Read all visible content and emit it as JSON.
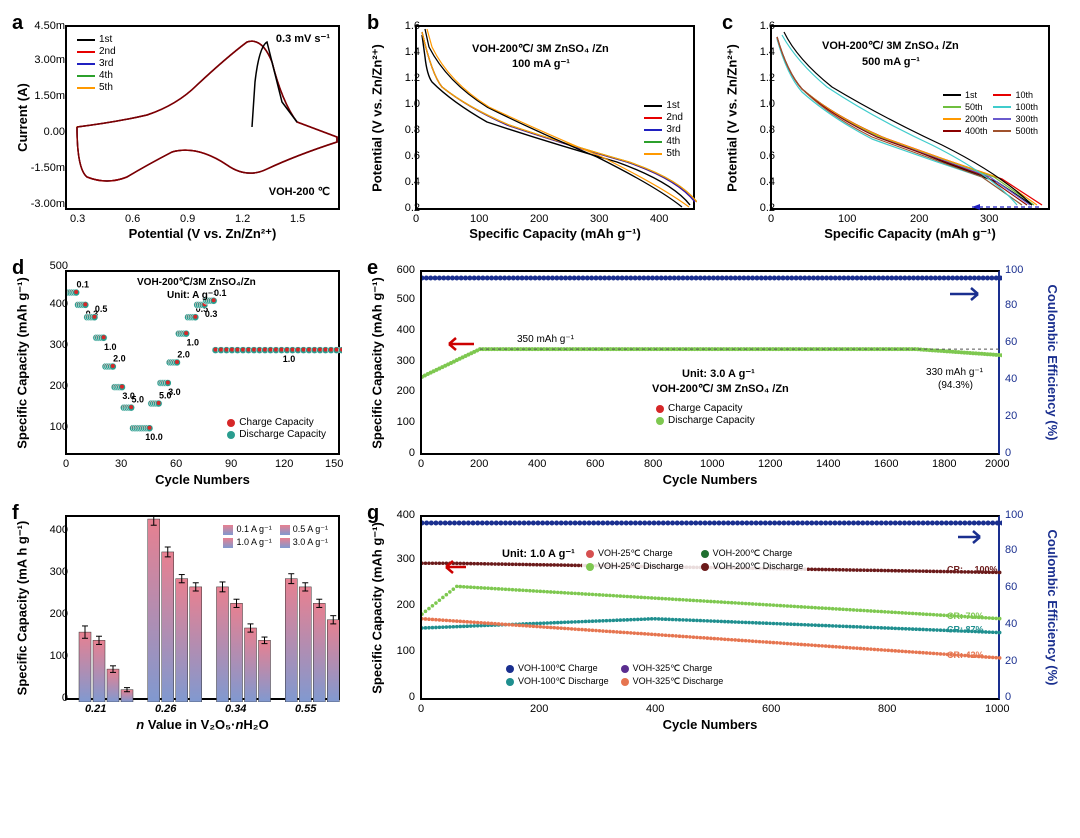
{
  "panel_a": {
    "label": "a",
    "type": "line",
    "title_annotations": [
      "0.3 mV s⁻¹",
      "VOH-200 ℃"
    ],
    "xlabel": "Potential (V vs. Zn/Zn²⁺)",
    "ylabel": "Current (A)",
    "xlim": [
      0.2,
      1.7
    ],
    "ylim": [
      -0.003,
      0.005
    ],
    "xticks": [
      0.3,
      0.6,
      0.9,
      1.2,
      1.5
    ],
    "yticks": [
      -3.0,
      -1.5,
      0.0,
      1.5,
      3.0,
      4.5
    ],
    "ytick_suffix": "m",
    "legend": [
      "1st",
      "2nd",
      "3rd",
      "4th",
      "5th"
    ],
    "colors": [
      "#000000",
      "#e60000",
      "#2020c0",
      "#2ca02c",
      "#ff9900"
    ],
    "background_color": "#ffffff",
    "label_fontsize": 13,
    "tick_fontsize": 11,
    "line_width": 1.5
  },
  "panel_b": {
    "label": "b",
    "type": "line",
    "title_annotations": [
      "VOH-200℃/ 3M ZnSO₄ /Zn",
      "100 mA g⁻¹"
    ],
    "xlabel": "Specific Capacity (mAh g⁻¹)",
    "ylabel": "Potential (V vs. Zn/Zn²⁺)",
    "xlim": [
      0,
      450
    ],
    "ylim": [
      0.2,
      1.6
    ],
    "xticks": [
      0,
      100,
      200,
      300,
      400
    ],
    "yticks": [
      0.2,
      0.4,
      0.6,
      0.8,
      1.0,
      1.2,
      1.4,
      1.6
    ],
    "legend": [
      "1st",
      "2nd",
      "3rd",
      "4th",
      "5th"
    ],
    "colors": [
      "#000000",
      "#e60000",
      "#2020c0",
      "#2ca02c",
      "#ff9900"
    ],
    "background_color": "#ffffff"
  },
  "panel_c": {
    "label": "c",
    "type": "line",
    "title_annotations": [
      "VOH-200℃/ 3M ZnSO₄ /Zn",
      "500 mA g⁻¹"
    ],
    "xlabel": "Specific Capacity (mAh g⁻¹)",
    "ylabel": "Potential (V vs. Zn/Zn²⁺)",
    "xlim": [
      0,
      380
    ],
    "ylim": [
      0.2,
      1.6
    ],
    "xticks": [
      0,
      100,
      200,
      300
    ],
    "yticks": [
      0.2,
      0.4,
      0.6,
      0.8,
      1.0,
      1.2,
      1.4,
      1.6
    ],
    "legend": [
      "1st",
      "10th",
      "50th",
      "100th",
      "200th",
      "300th",
      "400th",
      "500th"
    ],
    "colors": [
      "#000000",
      "#e60000",
      "#6fbf3f",
      "#40cccc",
      "#ff9900",
      "#6a5acd",
      "#8b0000",
      "#a0522d"
    ],
    "background_color": "#ffffff"
  },
  "panel_d": {
    "label": "d",
    "type": "scatter",
    "title_annotations": [
      "VOH-200℃/3M ZnSO₄/Zn",
      "Unit: A g⁻¹"
    ],
    "xlabel": "Cycle Numbers",
    "ylabel": "Specific Capacity (mAh g⁻¹)",
    "xlim": [
      0,
      150
    ],
    "ylim": [
      50,
      500
    ],
    "xticks": [
      0,
      30,
      60,
      90,
      120,
      150
    ],
    "yticks": [
      100,
      200,
      300,
      400,
      500
    ],
    "rate_labels": [
      "0.1",
      "0.3",
      "0.5",
      "1.0",
      "2.0",
      "3.0",
      "5.0",
      "10.0",
      "5.0",
      "3.0",
      "2.0",
      "1.0",
      "0.5",
      "0.3",
      "0.1",
      "1.0"
    ],
    "legend": [
      "Charge Capacity",
      "Discharge Capacity"
    ],
    "colors": [
      "#d62728",
      "#2a9d8f"
    ],
    "marker_style": "circle",
    "marker_size": 7,
    "data_approx": [
      {
        "rate": 0.1,
        "cycles": [
          1,
          5
        ],
        "cap": 450
      },
      {
        "rate": 0.3,
        "cycles": [
          6,
          10
        ],
        "cap": 420
      },
      {
        "rate": 0.5,
        "cycles": [
          11,
          15
        ],
        "cap": 390
      },
      {
        "rate": 1.0,
        "cycles": [
          16,
          20
        ],
        "cap": 340
      },
      {
        "rate": 2.0,
        "cycles": [
          21,
          25
        ],
        "cap": 270
      },
      {
        "rate": 3.0,
        "cycles": [
          26,
          30
        ],
        "cap": 220
      },
      {
        "rate": 5.0,
        "cycles": [
          31,
          35
        ],
        "cap": 170
      },
      {
        "rate": 10.0,
        "cycles": [
          36,
          45
        ],
        "cap": 120
      },
      {
        "rate": 5.0,
        "cycles": [
          46,
          50
        ],
        "cap": 180
      },
      {
        "rate": 3.0,
        "cycles": [
          51,
          55
        ],
        "cap": 230
      },
      {
        "rate": 2.0,
        "cycles": [
          56,
          60
        ],
        "cap": 280
      },
      {
        "rate": 1.0,
        "cycles": [
          61,
          65
        ],
        "cap": 350
      },
      {
        "rate": 0.5,
        "cycles": [
          66,
          70
        ],
        "cap": 390
      },
      {
        "rate": 0.3,
        "cycles": [
          71,
          75
        ],
        "cap": 420
      },
      {
        "rate": 0.1,
        "cycles": [
          76,
          80
        ],
        "cap": 430
      },
      {
        "rate": 1.0,
        "cycles": [
          81,
          150
        ],
        "cap": 310
      }
    ]
  },
  "panel_e": {
    "label": "e",
    "type": "scatter",
    "title_annotations": [
      "Unit: 3.0 A g⁻¹",
      "VOH-200℃/ 3M ZnSO₄ /Zn",
      "350 mAh g⁻¹",
      "330 mAh g⁻¹",
      "(94.3%)"
    ],
    "xlabel": "Cycle Numbers",
    "ylabel": "Specific Capacity (mAh g⁻¹)",
    "ylabel_right": "Coulombic Efficiency (%)",
    "xlim": [
      0,
      2000
    ],
    "ylim": [
      0,
      600
    ],
    "ylim_right": [
      0,
      100
    ],
    "xticks": [
      0,
      200,
      400,
      600,
      800,
      1000,
      1200,
      1400,
      1600,
      1800,
      2000
    ],
    "yticks": [
      0,
      100,
      200,
      300,
      400,
      500,
      600
    ],
    "yticks_right": [
      0,
      20,
      40,
      60,
      80,
      100
    ],
    "legend": [
      "Charge Capacity",
      "Discharge Capacity"
    ],
    "colors": {
      "charge": "#d62728",
      "discharge": "#7ec850",
      "efficiency": "#1a2f8f"
    },
    "right_axis_color": "#1a2f8f",
    "marker_size": 5,
    "capacity_curve": {
      "start": 260,
      "plateau": 350,
      "end": 330
    },
    "efficiency_value": 100
  },
  "panel_f": {
    "label": "f",
    "type": "bar",
    "xlabel": "n Value in V₂O₅·nH₂O",
    "ylabel": "Specific Capacity (mA h g⁻¹)",
    "xlim": [
      0,
      4
    ],
    "ylim": [
      0,
      450
    ],
    "yticks": [
      0,
      100,
      200,
      300,
      400
    ],
    "categories": [
      "0.21",
      "0.26",
      "0.34",
      "0.55"
    ],
    "category_style": "italic",
    "legend": [
      "0.1 A g⁻¹",
      "0.5 A g⁻¹",
      "1.0 A g⁻¹",
      "3.0 A g⁻¹"
    ],
    "bar_colors_gradient": [
      [
        "#e88090",
        "#8099d0"
      ],
      [
        "#e88090",
        "#8099d0"
      ],
      [
        "#e88090",
        "#8099d0"
      ],
      [
        "#e88090",
        "#8099d0"
      ]
    ],
    "data": {
      "0.21": [
        170,
        150,
        80,
        30
      ],
      "0.26": [
        445,
        365,
        300,
        280
      ],
      "0.34": [
        280,
        240,
        180,
        150
      ],
      "0.55": [
        300,
        280,
        240,
        200
      ]
    },
    "error_bars": {
      "0.21": [
        15,
        10,
        8,
        5
      ],
      "0.26": [
        15,
        12,
        10,
        10
      ],
      "0.34": [
        12,
        10,
        10,
        8
      ],
      "0.55": [
        12,
        10,
        10,
        10
      ]
    },
    "bar_width": 0.18
  },
  "panel_g": {
    "label": "g",
    "type": "scatter",
    "title_annotations": [
      "Unit: 1.0 A g⁻¹"
    ],
    "xlabel": "Cycle Numbers",
    "ylabel": "Specific Capacity (mAh g⁻¹)",
    "ylabel_right": "Coulombic Efficiency (%)",
    "xlim": [
      0,
      1000
    ],
    "ylim": [
      0,
      400
    ],
    "ylim_right": [
      0,
      100
    ],
    "xticks": [
      0,
      200,
      400,
      600,
      800,
      1000
    ],
    "yticks": [
      0,
      100,
      200,
      300,
      400
    ],
    "yticks_right": [
      0,
      20,
      40,
      60,
      80,
      100
    ],
    "series": [
      {
        "name": "VOH-25℃ Charge",
        "color": "#d65050"
      },
      {
        "name": "VOH-25℃ Discharge",
        "color": "#7ec850"
      },
      {
        "name": "VOH-100℃ Charge",
        "color": "#1a2f8f"
      },
      {
        "name": "VOH-100℃ Discharge",
        "color": "#1f8f8f"
      },
      {
        "name": "VOH-200℃ Charge",
        "color": "#1f6f2f"
      },
      {
        "name": "VOH-200℃ Discharge",
        "color": "#6b1a1a"
      },
      {
        "name": "VOH-325℃ Charge",
        "color": "#5a2d8f"
      },
      {
        "name": "VOH-325℃ Discharge",
        "color": "#e67550"
      }
    ],
    "cr_labels": [
      {
        "text": "CR: →100%",
        "color": "#6b1a1a",
        "y": 280
      },
      {
        "text": "CR: 70%",
        "color": "#7ec850",
        "y": 180
      },
      {
        "text": "CR: 87%",
        "color": "#1f8f8f",
        "y": 150
      },
      {
        "text": "CR: 42%",
        "color": "#e67550",
        "y": 95
      }
    ],
    "right_axis_color": "#1a2f8f",
    "efficiency_value": 100,
    "curves_approx": {
      "VOH-25": {
        "start": 190,
        "peak": 250,
        "end": 180
      },
      "VOH-100": {
        "start": 160,
        "mid": 180,
        "end": 150
      },
      "VOH-200": {
        "start": 300,
        "mid": 290,
        "end": 280
      },
      "VOH-325": {
        "start": 180,
        "mid": 140,
        "end": 95
      }
    }
  },
  "global": {
    "font_family": "Arial",
    "border_color": "#000000",
    "border_width": 2,
    "background_color": "#ffffff"
  }
}
